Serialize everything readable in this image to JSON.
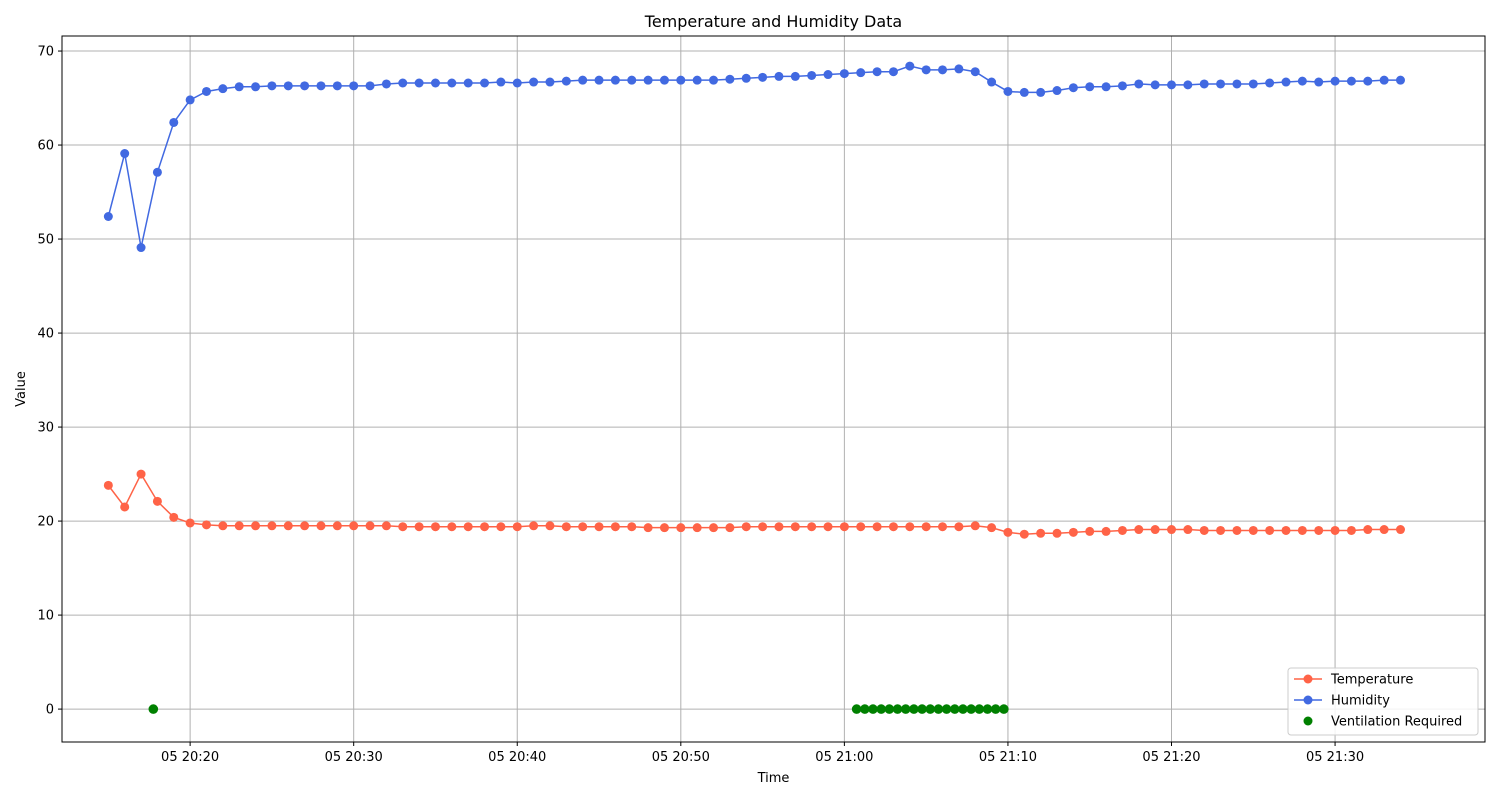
{
  "chart_data": {
    "type": "line",
    "title": "Temperature and Humidity Data",
    "xlabel": "Time",
    "ylabel": "Value",
    "xlim": [
      "20:12:10",
      "21:39:10"
    ],
    "ylim": [
      -3.5,
      71.6
    ],
    "x_ticks": [
      {
        "value": "20:20",
        "label": "05 20:20"
      },
      {
        "value": "20:30",
        "label": "05 20:30"
      },
      {
        "value": "20:40",
        "label": "05 20:40"
      },
      {
        "value": "20:50",
        "label": "05 20:50"
      },
      {
        "value": "21:00",
        "label": "05 21:00"
      },
      {
        "value": "21:10",
        "label": "05 21:10"
      },
      {
        "value": "21:20",
        "label": "05 21:20"
      },
      {
        "value": "21:30",
        "label": "05 21:30"
      }
    ],
    "y_ticks": [
      0,
      10,
      20,
      30,
      40,
      50,
      60,
      70
    ],
    "grid": true,
    "legend_position": "lower-right",
    "x_times": [
      "20:15",
      "20:16",
      "20:17",
      "20:18",
      "20:19",
      "20:20",
      "20:21",
      "20:22",
      "20:23",
      "20:24",
      "20:25",
      "20:26",
      "20:27",
      "20:28",
      "20:29",
      "20:30",
      "20:31",
      "20:32",
      "20:33",
      "20:34",
      "20:35",
      "20:36",
      "20:37",
      "20:38",
      "20:39",
      "20:40",
      "20:41",
      "20:42",
      "20:43",
      "20:44",
      "20:45",
      "20:46",
      "20:47",
      "20:48",
      "20:49",
      "20:50",
      "20:51",
      "20:52",
      "20:53",
      "20:54",
      "20:55",
      "20:56",
      "20:57",
      "20:58",
      "20:59",
      "21:00",
      "21:01",
      "21:02",
      "21:03",
      "21:04",
      "21:05",
      "21:06",
      "21:07",
      "21:08",
      "21:09",
      "21:10",
      "21:11",
      "21:12",
      "21:13",
      "21:14",
      "21:15",
      "21:16",
      "21:17",
      "21:18",
      "21:19",
      "21:20",
      "21:21",
      "21:22",
      "21:23",
      "21:24",
      "21:25",
      "21:26",
      "21:27",
      "21:28",
      "21:29",
      "21:30",
      "21:31",
      "21:32",
      "21:33",
      "21:34"
    ],
    "series": [
      {
        "name": "Temperature",
        "kind": "line",
        "color": "#ff6347",
        "values": [
          23.8,
          21.5,
          25.0,
          22.1,
          20.4,
          19.8,
          19.6,
          19.5,
          19.5,
          19.5,
          19.5,
          19.5,
          19.5,
          19.5,
          19.5,
          19.5,
          19.5,
          19.5,
          19.4,
          19.4,
          19.4,
          19.4,
          19.4,
          19.4,
          19.4,
          19.4,
          19.5,
          19.5,
          19.4,
          19.4,
          19.4,
          19.4,
          19.4,
          19.3,
          19.3,
          19.3,
          19.3,
          19.3,
          19.3,
          19.4,
          19.4,
          19.4,
          19.4,
          19.4,
          19.4,
          19.4,
          19.4,
          19.4,
          19.4,
          19.4,
          19.4,
          19.4,
          19.4,
          19.5,
          19.3,
          18.8,
          18.6,
          18.7,
          18.7,
          18.8,
          18.9,
          18.9,
          19.0,
          19.1,
          19.1,
          19.1,
          19.1,
          19.0,
          19.0,
          19.0,
          19.0,
          19.0,
          19.0,
          19.0,
          19.0,
          19.0,
          19.0,
          19.1,
          19.1,
          19.1
        ]
      },
      {
        "name": "Humidity",
        "kind": "line",
        "color": "#4169e1",
        "values": [
          52.4,
          59.1,
          49.1,
          57.1,
          62.4,
          64.8,
          65.7,
          66.0,
          66.2,
          66.2,
          66.3,
          66.3,
          66.3,
          66.3,
          66.3,
          66.3,
          66.3,
          66.5,
          66.6,
          66.6,
          66.6,
          66.6,
          66.6,
          66.6,
          66.7,
          66.6,
          66.7,
          66.7,
          66.8,
          66.9,
          66.9,
          66.9,
          66.9,
          66.9,
          66.9,
          66.9,
          66.9,
          66.9,
          67.0,
          67.1,
          67.2,
          67.3,
          67.3,
          67.4,
          67.5,
          67.6,
          67.7,
          67.8,
          67.8,
          68.4,
          68.0,
          68.0,
          68.1,
          67.8,
          66.7,
          65.7,
          65.6,
          65.6,
          65.8,
          66.1,
          66.2,
          66.2,
          66.3,
          66.5,
          66.4,
          66.4,
          66.4,
          66.5,
          66.5,
          66.5,
          66.5,
          66.6,
          66.7,
          66.8,
          66.7,
          66.8,
          66.8,
          66.8,
          66.9,
          66.9
        ]
      },
      {
        "name": "Ventilation Required",
        "kind": "scatter",
        "color": "#008000",
        "x": [
          "20:17:45",
          "21:00:45",
          "21:01:15",
          "21:01:45",
          "21:02:15",
          "21:02:45",
          "21:03:15",
          "21:03:45",
          "21:04:15",
          "21:04:45",
          "21:05:15",
          "21:05:45",
          "21:06:15",
          "21:06:45",
          "21:07:15",
          "21:07:45",
          "21:08:15",
          "21:08:45",
          "21:09:15",
          "21:09:45"
        ],
        "values": [
          0,
          0,
          0,
          0,
          0,
          0,
          0,
          0,
          0,
          0,
          0,
          0,
          0,
          0,
          0,
          0,
          0,
          0,
          0,
          0
        ]
      }
    ]
  }
}
